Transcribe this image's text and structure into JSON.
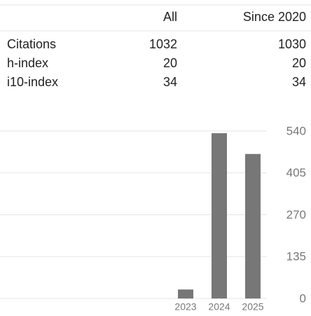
{
  "table": {
    "columns": [
      "All",
      "Since 2020"
    ],
    "rows": [
      [
        "Citations",
        1032,
        1030
      ],
      [
        "h-index",
        20,
        20
      ],
      [
        "i10-index",
        34,
        34
      ]
    ]
  },
  "chart_data": {
    "type": "bar",
    "categories": [
      "2023",
      "2024",
      "2025"
    ],
    "values": [
      29,
      533,
      466
    ],
    "color": "#777777",
    "ylim": [
      0,
      540
    ],
    "yticks": [
      0,
      135,
      270,
      405,
      540
    ],
    "grid": true
  }
}
